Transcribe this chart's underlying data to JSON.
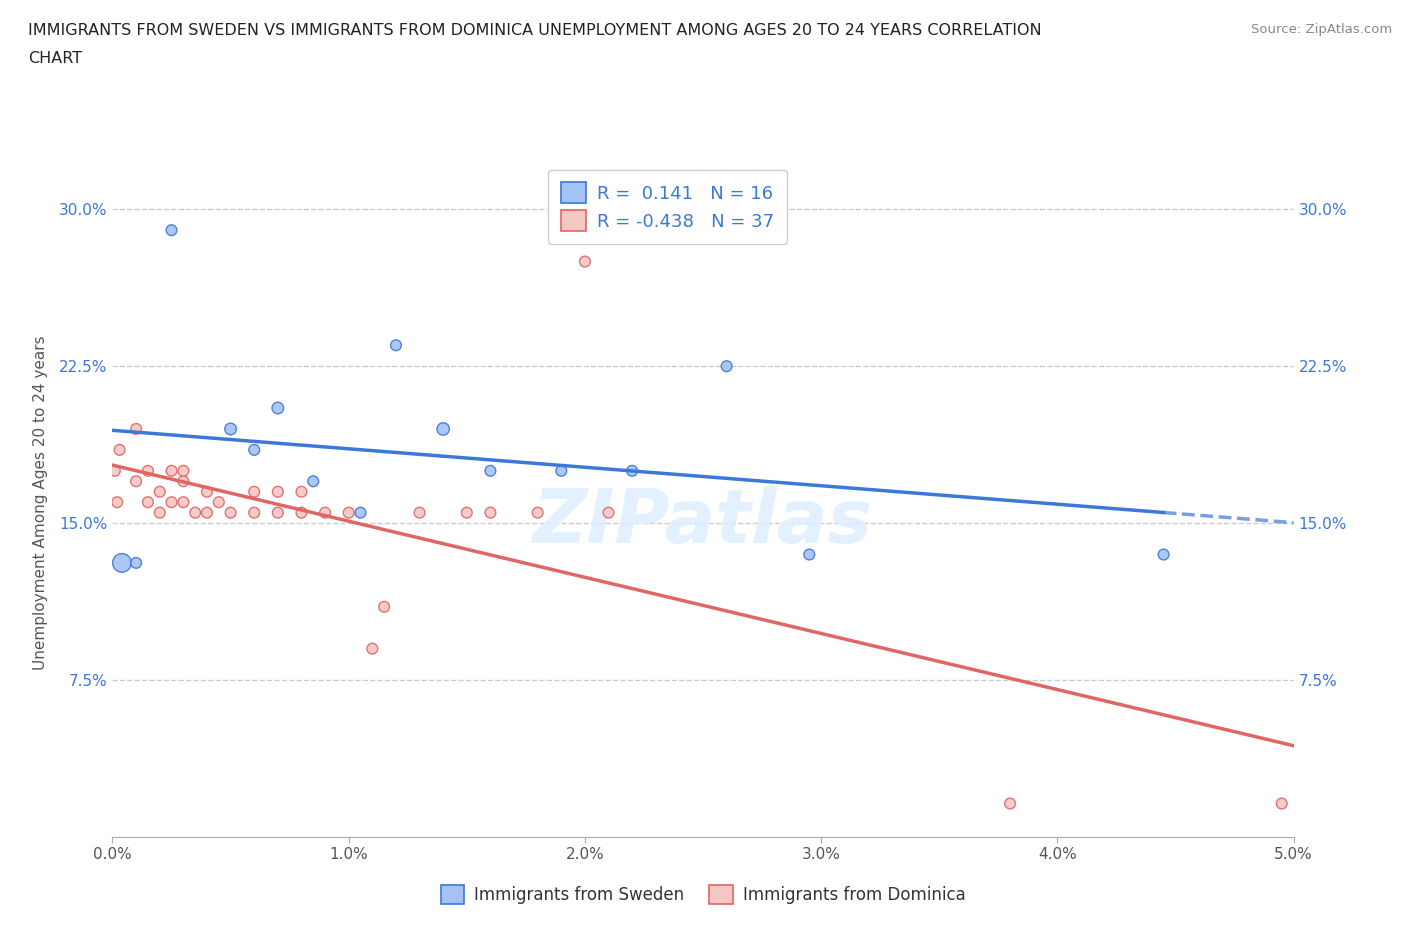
{
  "title_line1": "IMMIGRANTS FROM SWEDEN VS IMMIGRANTS FROM DOMINICA UNEMPLOYMENT AMONG AGES 20 TO 24 YEARS CORRELATION",
  "title_line2": "CHART",
  "source": "Source: ZipAtlas.com",
  "ylabel": "Unemployment Among Ages 20 to 24 years",
  "xlabel_sweden": "Immigrants from Sweden",
  "xlabel_dominica": "Immigrants from Dominica",
  "xlim": [
    0.0,
    0.05
  ],
  "ylim": [
    0.0,
    0.32
  ],
  "x_ticks": [
    0.0,
    0.01,
    0.02,
    0.03,
    0.04,
    0.05
  ],
  "x_tick_labels": [
    "0.0%",
    "1.0%",
    "2.0%",
    "3.0%",
    "4.0%",
    "5.0%"
  ],
  "y_ticks": [
    0.0,
    0.075,
    0.15,
    0.225,
    0.3
  ],
  "y_tick_labels": [
    "",
    "7.5%",
    "15.0%",
    "22.5%",
    "30.0%"
  ],
  "sweden_color": "#a4c2f4",
  "dominica_color": "#f4c7c3",
  "sweden_line_color": "#3c78d8",
  "dominica_line_color": "#e06666",
  "R_sweden": 0.141,
  "N_sweden": 16,
  "R_dominica": -0.438,
  "N_dominica": 37,
  "watermark": "ZIPatlas",
  "sweden_scatter_x": [
    0.0004,
    0.001,
    0.0025,
    0.005,
    0.006,
    0.007,
    0.0085,
    0.0105,
    0.012,
    0.014,
    0.016,
    0.019,
    0.022,
    0.026,
    0.0295,
    0.0445
  ],
  "sweden_scatter_y": [
    0.131,
    0.131,
    0.29,
    0.195,
    0.185,
    0.205,
    0.17,
    0.155,
    0.235,
    0.195,
    0.175,
    0.175,
    0.175,
    0.225,
    0.135,
    0.135
  ],
  "sweden_marker_sizes": [
    180,
    60,
    60,
    70,
    60,
    70,
    60,
    60,
    60,
    80,
    60,
    60,
    60,
    60,
    60,
    60
  ],
  "dominica_scatter_x": [
    0.0001,
    0.0002,
    0.0003,
    0.001,
    0.001,
    0.0015,
    0.0015,
    0.002,
    0.002,
    0.0025,
    0.0025,
    0.003,
    0.003,
    0.003,
    0.0035,
    0.004,
    0.004,
    0.0045,
    0.005,
    0.006,
    0.006,
    0.007,
    0.007,
    0.008,
    0.008,
    0.009,
    0.01,
    0.011,
    0.0115,
    0.013,
    0.015,
    0.016,
    0.018,
    0.02,
    0.021,
    0.038,
    0.0495
  ],
  "dominica_scatter_y": [
    0.175,
    0.16,
    0.185,
    0.195,
    0.17,
    0.175,
    0.16,
    0.155,
    0.165,
    0.16,
    0.175,
    0.16,
    0.17,
    0.175,
    0.155,
    0.155,
    0.165,
    0.16,
    0.155,
    0.155,
    0.165,
    0.155,
    0.165,
    0.155,
    0.165,
    0.155,
    0.155,
    0.09,
    0.11,
    0.155,
    0.155,
    0.155,
    0.155,
    0.275,
    0.155,
    0.016,
    0.016
  ],
  "dominica_marker_sizes": [
    60,
    60,
    60,
    60,
    60,
    60,
    60,
    60,
    60,
    60,
    60,
    60,
    60,
    60,
    60,
    60,
    60,
    60,
    60,
    60,
    60,
    60,
    60,
    60,
    60,
    60,
    60,
    60,
    60,
    60,
    60,
    60,
    60,
    60,
    60,
    60,
    60
  ]
}
